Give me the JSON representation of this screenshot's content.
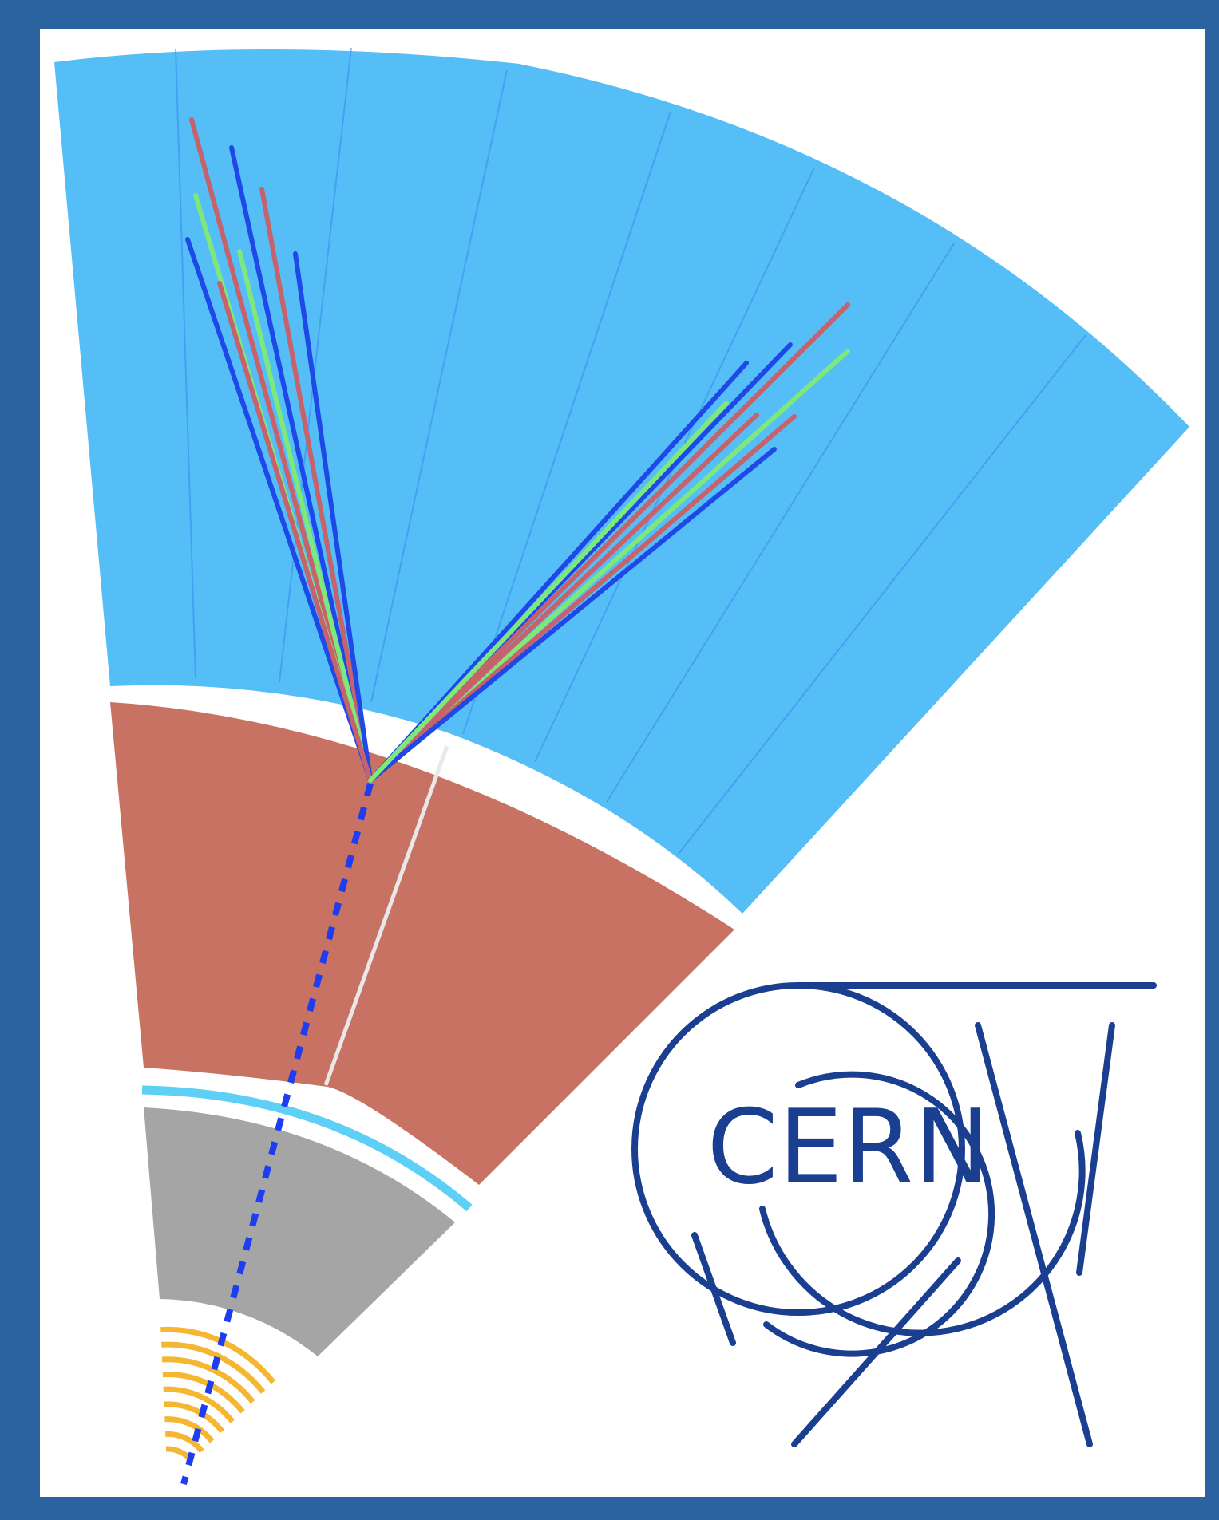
{
  "logo": {
    "text": "CERN",
    "color": "#1a3f91"
  },
  "colors": {
    "border": "#2a63a0",
    "background": "#ffffff",
    "hadronic_calorimeter": "#55bef7",
    "hadronic_cell_lines": "#3a8ef0",
    "em_calorimeter": "#c77263",
    "solenoid": "#5fd0f5",
    "tracker": "#a5a5a5",
    "pixel_detector": "#f5b731",
    "track_blue": "#1e48e8",
    "track_red": "#c5626b",
    "track_green": "#7ee87b",
    "dashed_track": "#1e3cf0"
  }
}
